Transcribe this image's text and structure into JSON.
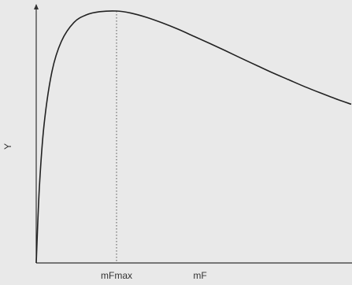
{
  "chart_data": {
    "type": "line",
    "title": "",
    "xlabel": "mF",
    "ylabel": "Y",
    "x_ticks": [
      {
        "value": 0.255,
        "label": "mFmax"
      }
    ],
    "xlim": [
      0,
      1
    ],
    "ylim": [
      0,
      1
    ],
    "grid": false,
    "ticks_numeric": false,
    "series": [
      {
        "line_color": "#222222",
        "x": [
          0,
          0.01,
          0.025,
          0.05,
          0.08,
          0.12,
          0.16,
          0.2,
          0.255,
          0.3,
          0.35,
          0.4,
          0.45,
          0.5,
          0.55,
          0.6,
          0.65,
          0.7,
          0.75,
          0.8,
          0.85,
          0.9,
          0.95,
          1.0
        ],
        "y": [
          0,
          0.3,
          0.55,
          0.76,
          0.88,
          0.955,
          0.985,
          0.997,
          1.0,
          0.992,
          0.975,
          0.953,
          0.928,
          0.9,
          0.872,
          0.843,
          0.813,
          0.784,
          0.755,
          0.728,
          0.701,
          0.676,
          0.652,
          0.63
        ]
      }
    ],
    "annotations": [
      {
        "type": "vertical-dotted-line",
        "x": 0.255,
        "from_y": 0,
        "to_y": 1.0
      }
    ]
  }
}
